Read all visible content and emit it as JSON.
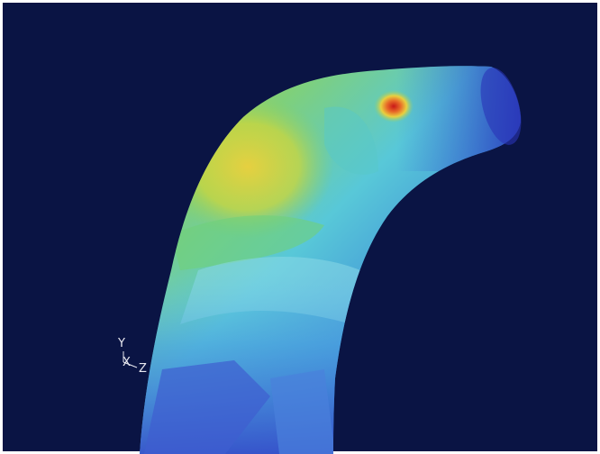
{
  "axis_triad": {
    "y_label": "Y",
    "x_label": "X",
    "z_label": "Z"
  }
}
